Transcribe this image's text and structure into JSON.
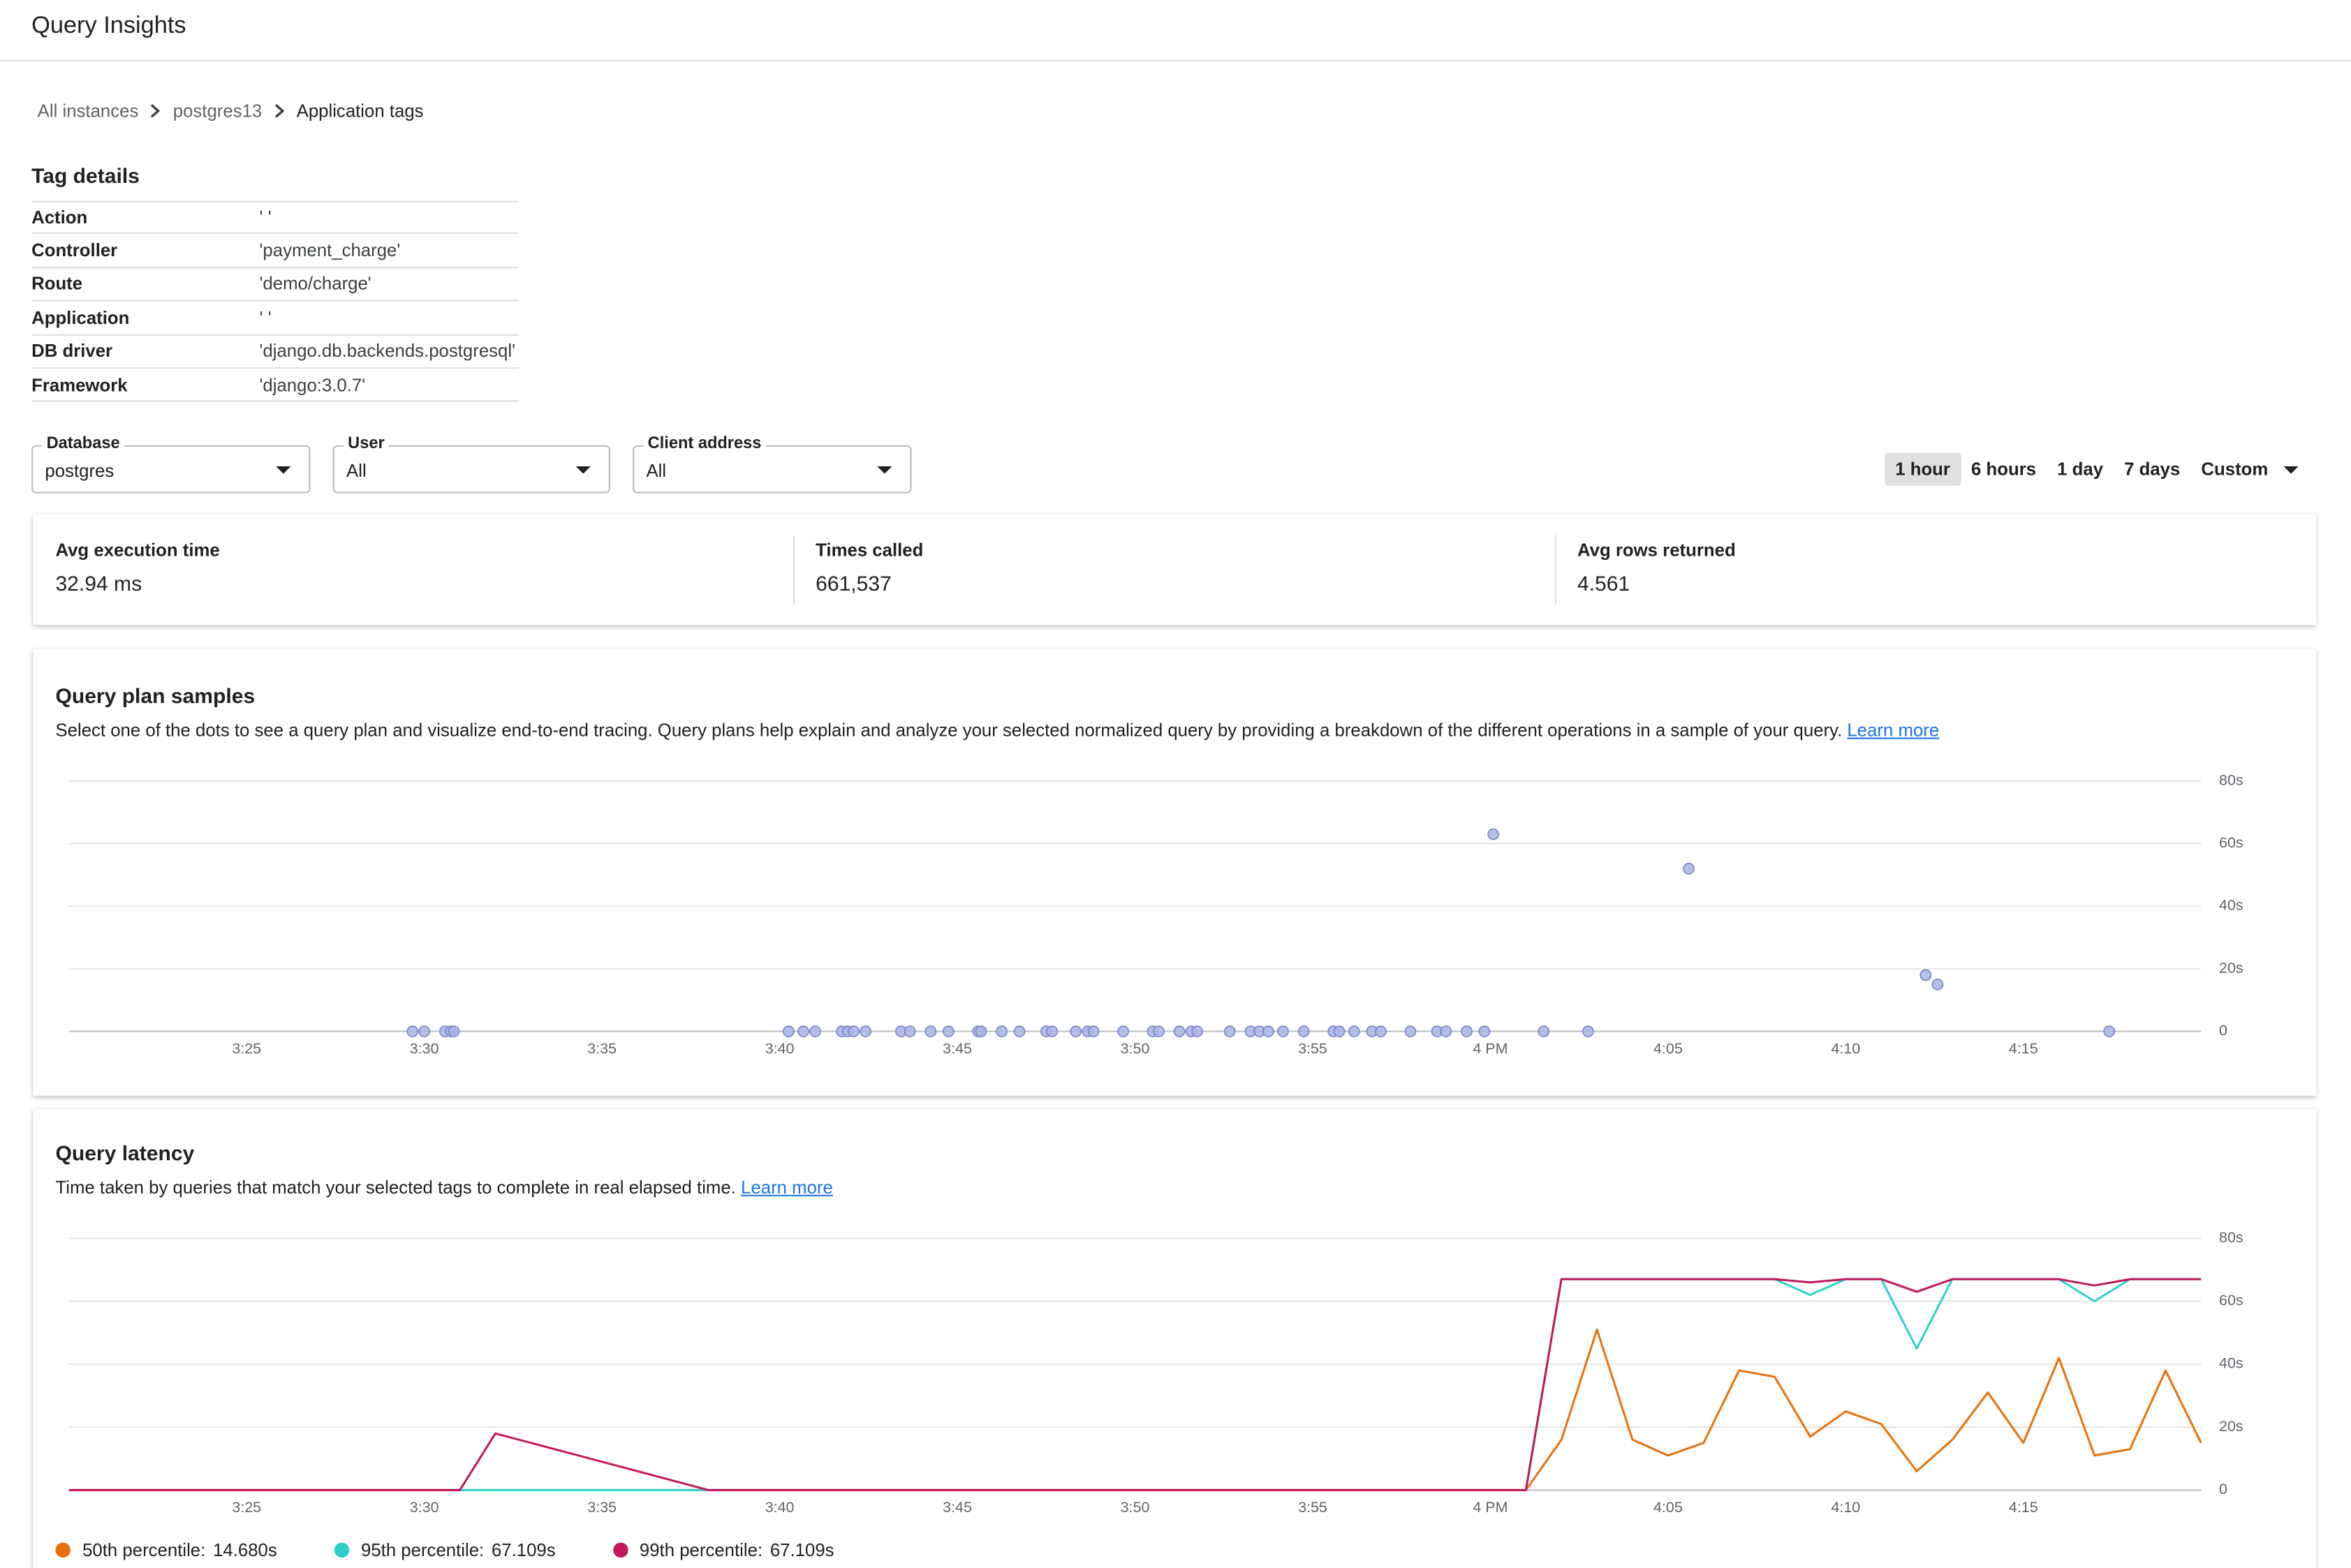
{
  "header": {
    "title": "Query Insights"
  },
  "breadcrumbs": [
    "All instances",
    "postgres13",
    "Application tags"
  ],
  "tag_details": {
    "title": "Tag details",
    "rows": [
      [
        "Action",
        "' '"
      ],
      [
        "Controller",
        "'payment_charge'"
      ],
      [
        "Route",
        "'demo/charge'"
      ],
      [
        "Application",
        "' '"
      ],
      [
        "DB driver",
        "'django.db.backends.postgresql'"
      ],
      [
        "Framework",
        "'django:3.0.7'"
      ]
    ]
  },
  "filters": [
    {
      "label": "Database",
      "value": "postgres"
    },
    {
      "label": "User",
      "value": "All"
    },
    {
      "label": "Client address",
      "value": "All"
    }
  ],
  "time_ranges": {
    "options": [
      "1 hour",
      "6 hours",
      "1 day",
      "7 days",
      "Custom"
    ],
    "selected": 0
  },
  "stats": [
    {
      "label": "Avg execution time",
      "value": "32.94 ms"
    },
    {
      "label": "Times called",
      "value": "661,537"
    },
    {
      "label": "Avg rows returned",
      "value": "4.561"
    }
  ],
  "chart_data": [
    {
      "type": "scatter",
      "title": "Query plan samples",
      "description": "Select one of the dots to see a query plan and visualize end-to-end tracing. Query plans help explain and analyze your selected normalized query by providing a breakdown of the different operations in a sample of your query.",
      "link": "Learn more",
      "x": [
        "15:29:40",
        "15:30:00",
        "15:30:35",
        "15:30:45",
        "15:30:50",
        "15:40:15",
        "15:40:40",
        "15:41:00",
        "15:41:45",
        "15:41:55",
        "15:42:05",
        "15:42:25",
        "15:43:25",
        "15:43:40",
        "15:44:15",
        "15:44:45",
        "15:45:35",
        "15:45:40",
        "15:46:15",
        "15:46:45",
        "15:47:30",
        "15:47:40",
        "15:48:20",
        "15:48:40",
        "15:48:50",
        "15:49:40",
        "15:50:30",
        "15:50:40",
        "15:51:15",
        "15:51:35",
        "15:51:45",
        "15:52:40",
        "15:53:15",
        "15:53:30",
        "15:53:45",
        "15:54:10",
        "15:54:45",
        "15:55:35",
        "15:55:45",
        "15:56:10",
        "15:56:40",
        "15:56:55",
        "15:57:45",
        "15:58:30",
        "15:58:45",
        "15:59:20",
        "15:59:50",
        "16:00:05",
        "16:01:30",
        "16:02:45",
        "16:05:35",
        "16:12:15",
        "16:12:35",
        "16:17:25"
      ],
      "values": [
        0,
        0,
        0,
        0,
        0,
        0,
        0,
        0,
        0,
        0,
        0,
        0,
        0,
        0,
        0,
        0,
        0,
        0,
        0,
        0,
        0,
        0,
        0,
        0,
        0,
        0,
        0,
        0,
        0,
        0,
        0,
        0,
        0,
        0,
        0,
        0,
        0,
        0,
        0,
        0,
        0,
        0,
        0,
        0,
        0,
        0,
        0,
        63,
        0,
        0,
        52,
        18,
        15,
        0
      ],
      "color": "#aab4e8",
      "stroke": "#7986cb",
      "xlim": [
        "15:20",
        "16:20"
      ],
      "xticks": [
        {
          "value": "15:25",
          "label": "3:25"
        },
        {
          "value": "15:30",
          "label": "3:30"
        },
        {
          "value": "15:35",
          "label": "3:35"
        },
        {
          "value": "15:40",
          "label": "3:40"
        },
        {
          "value": "15:45",
          "label": "3:45"
        },
        {
          "value": "15:50",
          "label": "3:50"
        },
        {
          "value": "15:55",
          "label": "3:55"
        },
        {
          "value": "16:00",
          "label": "4 PM"
        },
        {
          "value": "16:05",
          "label": "4:05"
        },
        {
          "value": "16:10",
          "label": "4:10"
        },
        {
          "value": "16:15",
          "label": "4:15"
        }
      ],
      "ylim": [
        0,
        80
      ],
      "yticks": [
        0,
        {
          "value": 20,
          "label": "20s"
        },
        {
          "value": 40,
          "label": "40s"
        },
        {
          "value": 60,
          "label": "60s"
        },
        {
          "value": 80,
          "label": "80s"
        }
      ],
      "grid": true
    },
    {
      "type": "line",
      "title": "Query latency",
      "description": "Time taken by queries that match your selected tags to complete in real elapsed time.",
      "link": "Learn more",
      "x": [
        "15:20",
        "15:31",
        "15:32",
        "15:38",
        "16:01",
        "16:02",
        "16:03",
        "16:04",
        "16:05",
        "16:06",
        "16:07",
        "16:08",
        "16:09",
        "16:10",
        "16:11",
        "16:12",
        "16:13",
        "16:14",
        "16:15",
        "16:16",
        "16:17",
        "16:18",
        "16:19",
        "16:20"
      ],
      "series": [
        {
          "name": "50th percentile:",
          "summary": "14.680s",
          "color": "#e8710a",
          "values": [
            0,
            0,
            0,
            0,
            0,
            16,
            51,
            16,
            11,
            15,
            38,
            36,
            17,
            25,
            21,
            6,
            16,
            31,
            15,
            42,
            11,
            13,
            38,
            15
          ]
        },
        {
          "name": "95th percentile:",
          "summary": "67.109s",
          "color": "#2ed1c8",
          "values": [
            0,
            0,
            0,
            0,
            0,
            67,
            67,
            67,
            67,
            67,
            67,
            67,
            62,
            67,
            67,
            45,
            67,
            67,
            67,
            67,
            60,
            67,
            67,
            67
          ]
        },
        {
          "name": "99th percentile:",
          "summary": "67.109s",
          "color": "#c2185b",
          "values": [
            0,
            0,
            18,
            0,
            0,
            67,
            67,
            67,
            67,
            67,
            67,
            67,
            66,
            67,
            67,
            63,
            67,
            67,
            67,
            67,
            65,
            67,
            67,
            67
          ]
        }
      ],
      "xlim": [
        "15:20",
        "16:20"
      ],
      "xticks": [
        {
          "value": "15:25",
          "label": "3:25"
        },
        {
          "value": "15:30",
          "label": "3:30"
        },
        {
          "value": "15:35",
          "label": "3:35"
        },
        {
          "value": "15:40",
          "label": "3:40"
        },
        {
          "value": "15:45",
          "label": "3:45"
        },
        {
          "value": "15:50",
          "label": "3:50"
        },
        {
          "value": "15:55",
          "label": "3:55"
        },
        {
          "value": "16:00",
          "label": "4 PM"
        },
        {
          "value": "16:05",
          "label": "4:05"
        },
        {
          "value": "16:10",
          "label": "4:10"
        },
        {
          "value": "16:15",
          "label": "4:15"
        }
      ],
      "ylim": [
        0,
        80
      ],
      "yticks": [
        0,
        {
          "value": 20,
          "label": "20s"
        },
        {
          "value": 40,
          "label": "40s"
        },
        {
          "value": 60,
          "label": "60s"
        },
        {
          "value": 80,
          "label": "80s"
        }
      ],
      "grid": true
    }
  ]
}
